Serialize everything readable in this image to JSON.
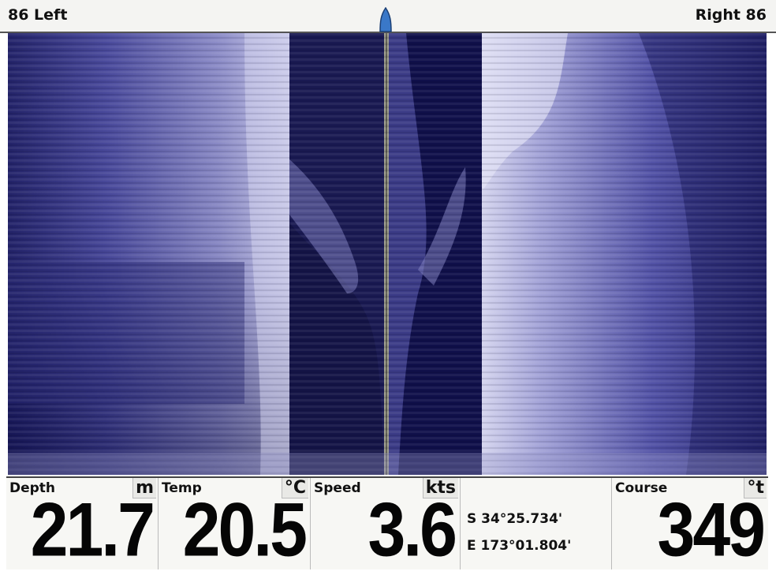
{
  "header": {
    "range_left": "86 Left",
    "range_right": "Right 86",
    "boat_icon": "boat-marker-icon"
  },
  "colors": {
    "sonar_dark": "#1c1c5c",
    "sonar_mid": "#5a5aa8",
    "sonar_light": "#d8d8f0",
    "boat_marker": "#3a78c8"
  },
  "readouts": {
    "depth": {
      "label": "Depth",
      "unit": "m",
      "value": "21.7"
    },
    "temp": {
      "label": "Temp",
      "unit": "°C",
      "value": "20.5"
    },
    "speed": {
      "label": "Speed",
      "unit": "kts",
      "value": "3.6"
    },
    "position": {
      "lat": "S 34°25.734'",
      "lon": "E 173°01.804'"
    },
    "course": {
      "label": "Course",
      "unit": "°t",
      "value": "349"
    }
  }
}
